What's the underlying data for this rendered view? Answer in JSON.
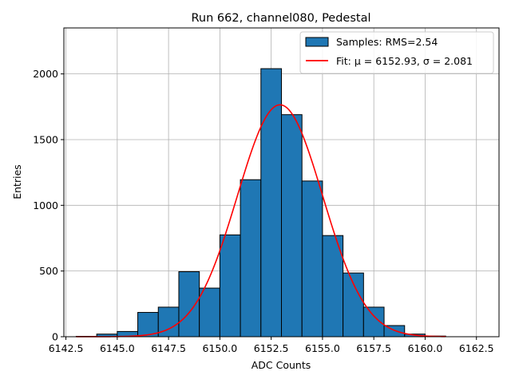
{
  "chart_data": {
    "type": "bar",
    "title": "Run 662, channel080, Pedestal",
    "xlabel": "ADC Counts",
    "ylabel": "Entries",
    "xlim": [
      6142.4,
      6163.6
    ],
    "ylim": [
      0,
      2350
    ],
    "xticks": [
      6142.5,
      6145.0,
      6147.5,
      6150.0,
      6152.5,
      6155.0,
      6157.5,
      6160.0,
      6162.5
    ],
    "xtick_labels": [
      "6142.5",
      "6145.0",
      "6147.5",
      "6150.0",
      "6152.5",
      "6155.0",
      "6157.5",
      "6160.0",
      "6162.5"
    ],
    "yticks": [
      0,
      500,
      1000,
      1500,
      2000
    ],
    "ytick_labels": [
      "0",
      "500",
      "1000",
      "1500",
      "2000"
    ],
    "grid": true,
    "legend_position": "top-right",
    "colors": {
      "bars": "#1f77b4",
      "bar_edge": "#000000",
      "fit": "#ff0000"
    },
    "histogram": {
      "name": "Samples: RMS=2.54",
      "bin_edges": [
        6143,
        6144,
        6145,
        6146,
        6147,
        6148,
        6149,
        6150,
        6151,
        6152,
        6153,
        6154,
        6155,
        6156,
        6157,
        6158,
        6159,
        6160,
        6161
      ],
      "counts": [
        3,
        20,
        40,
        185,
        225,
        495,
        370,
        775,
        1195,
        2040,
        1690,
        1185,
        770,
        485,
        225,
        85,
        20,
        5
      ]
    },
    "fit": {
      "name": "Fit: μ = 6152.93, σ = 2.081",
      "mu": 6152.93,
      "sigma": 2.081,
      "amplitude": 1765,
      "x_range": [
        6143,
        6161
      ]
    }
  }
}
